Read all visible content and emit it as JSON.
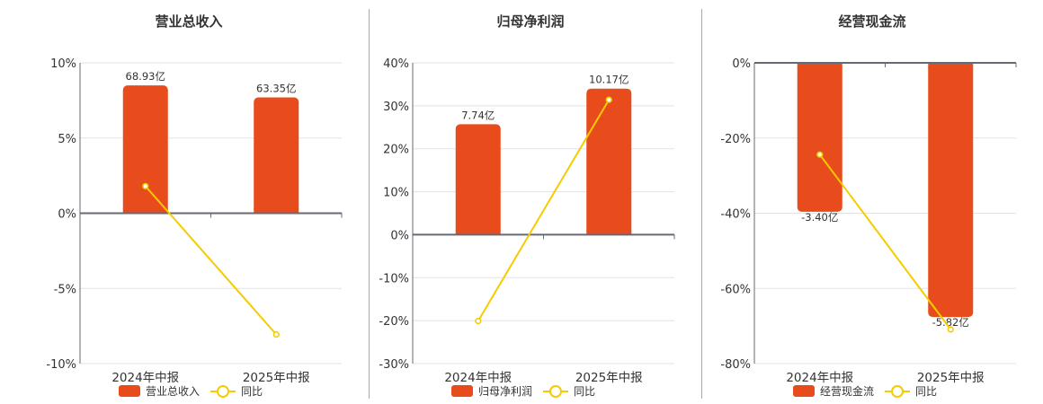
{
  "colors": {
    "bar": "#e84c1c",
    "line": "#f5cc00",
    "grid": "#dde3ee",
    "axis": "#666a73"
  },
  "chart_data": [
    {
      "type": "bar",
      "title": "营业总收入",
      "categories": [
        "2024年中报",
        "2025年中报"
      ],
      "series": [
        {
          "name": "营业总收入",
          "type": "bar",
          "values": [
            68.93,
            63.35
          ],
          "labels": [
            "68.93亿",
            "63.35亿"
          ],
          "unit": "亿"
        },
        {
          "name": "同比",
          "type": "line",
          "values": [
            1.8,
            -8.06
          ],
          "unit": "%"
        }
      ],
      "yticks": [
        "10%",
        "5%",
        "0%",
        "-5%",
        "-10%"
      ],
      "ylim": [
        -10,
        10
      ],
      "legend": [
        "营业总收入",
        "同比"
      ],
      "legend_position": "bottom",
      "grid": true
    },
    {
      "type": "bar",
      "title": "归母净利润",
      "categories": [
        "2024年中报",
        "2025年中报"
      ],
      "series": [
        {
          "name": "归母净利润",
          "type": "bar",
          "values": [
            7.74,
            10.17
          ],
          "labels": [
            "7.74亿",
            "10.17亿"
          ],
          "unit": "亿"
        },
        {
          "name": "同比",
          "type": "line",
          "values": [
            -20.1,
            31.4
          ],
          "unit": "%"
        }
      ],
      "yticks": [
        "40%",
        "30%",
        "20%",
        "10%",
        "0%",
        "-10%",
        "-20%",
        "-30%"
      ],
      "ylim": [
        -30,
        40
      ],
      "legend": [
        "归母净利润",
        "同比"
      ],
      "legend_position": "bottom",
      "grid": true
    },
    {
      "type": "bar",
      "title": "经营现金流",
      "categories": [
        "2024年中报",
        "2025年中报"
      ],
      "series": [
        {
          "name": "经营现金流",
          "type": "bar",
          "values": [
            -3.4,
            -5.82
          ],
          "labels": [
            "-3.40亿",
            "-5.82亿"
          ],
          "unit": "亿"
        },
        {
          "name": "同比",
          "type": "line",
          "values": [
            -24.4,
            -70.9
          ],
          "unit": "%"
        }
      ],
      "yticks": [
        "0%",
        "-20%",
        "-40%",
        "-60%",
        "-80%"
      ],
      "ylim": [
        -80,
        0
      ],
      "legend": [
        "经营现金流",
        "同比"
      ],
      "legend_position": "bottom",
      "grid": true
    }
  ],
  "panels": [
    {
      "title": "营业总收入",
      "legend_bar": "营业总收入",
      "legend_line": "同比"
    },
    {
      "title": "归母净利润",
      "legend_bar": "归母净利润",
      "legend_line": "同比"
    },
    {
      "title": "经营现金流",
      "legend_bar": "经营现金流",
      "legend_line": "同比"
    }
  ]
}
